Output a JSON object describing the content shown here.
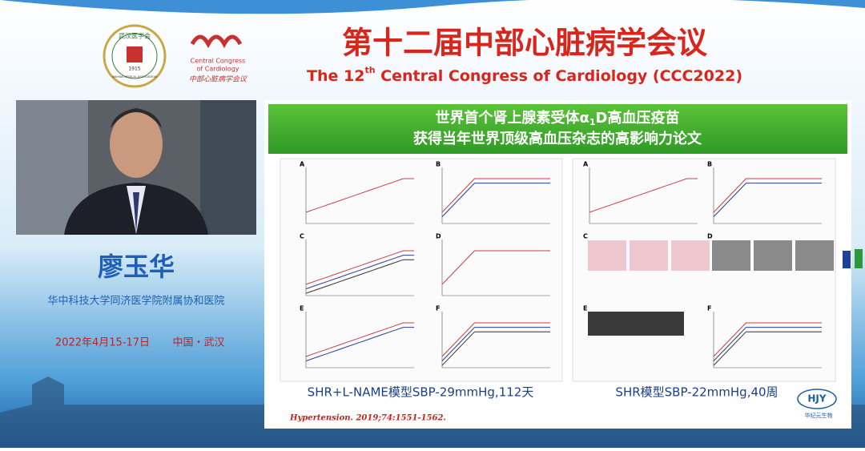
{
  "header": {
    "title_cn": "第十二届中部心脏病学会议",
    "title_en": [
      "The 12",
      "th",
      " Central Congress of Cardiology (CCC2022)"
    ],
    "logo_left": {
      "name": "武汉医学会",
      "year": "1915",
      "name_en": "WUHAN MEDICAL ASSOCIATION"
    },
    "logo_right": {
      "name_en": [
        "Central Congress",
        "of Cardiology"
      ],
      "name_cn": "中部心脏病学会议"
    }
  },
  "speaker": {
    "name": "廖玉华",
    "affiliation": "华中科技大学同济医学院附属协和医院",
    "date": "2022年4月15-17日",
    "place": "中国・武汉"
  },
  "slide": {
    "title_lines": [
      [
        "世界首个肾上腺素受体α",
        "1",
        "D高血压疫苗"
      ],
      "获得当年世界顶级高血压杂志的高影响力论文"
    ],
    "left_panels": [
      "A",
      "B",
      "C",
      "D",
      "E",
      "F"
    ],
    "right_panels": [
      "A",
      "B",
      "C",
      "D",
      "E",
      "F"
    ],
    "captions": [
      "SHR+L-NAME模型SBP-29mmHg,112天",
      "SHR模型SBP-22mmHg,40周"
    ],
    "citation": "Hypertension. 2019;74:1551-1562.",
    "logo": {
      "mark": "HJY",
      "name": "华纪元生物"
    }
  }
}
